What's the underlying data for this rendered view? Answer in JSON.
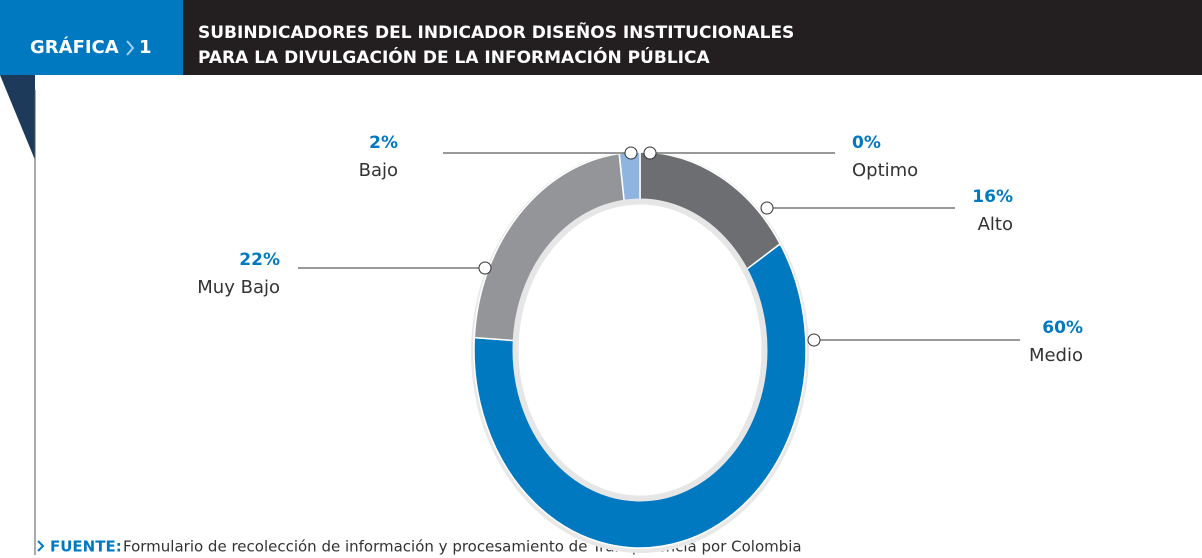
{
  "chart_data": {
    "type": "donut",
    "figure_label": "GRÁFICA",
    "figure_number": "1",
    "title": [
      "SUBINDICADORES DEL INDICADOR DISEÑOS INSTITUCIONALES",
      "PARA LA DIVULGACIÓN DE LA INFORMACIÓN PÚBLICA"
    ],
    "categories": [
      "Optimo",
      "Alto",
      "Medio",
      "Muy Bajo",
      "Bajo"
    ],
    "values": [
      0,
      16,
      60,
      22,
      2
    ],
    "value_labels": [
      "0%",
      "16%",
      "60%",
      "22%",
      "2%"
    ],
    "colors": [
      "#4d4e52",
      "#6d6e71",
      "#0079c1",
      "#939598",
      "#8fb4e0"
    ],
    "source_label": "FUENTE:",
    "source": "Formulario de recolección de información y procesamiento de Transparencia por Colombia"
  }
}
